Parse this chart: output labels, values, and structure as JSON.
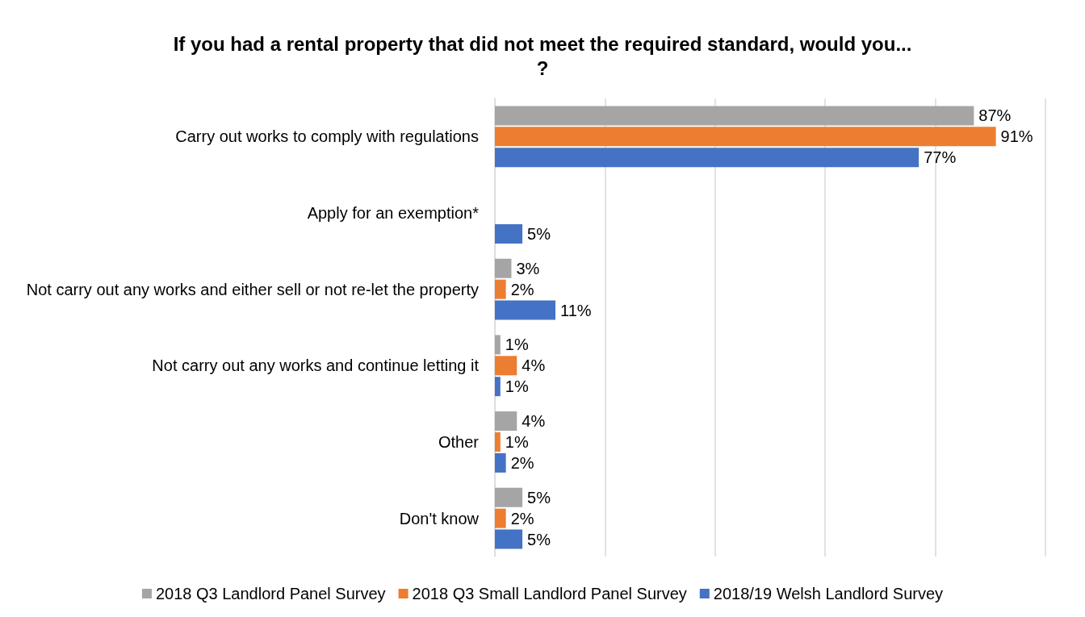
{
  "chart_data": {
    "type": "bar",
    "orientation": "horizontal",
    "title": "If you had a rental property that did not meet the required standard, would you...?",
    "categories": [
      "Carry out works to comply with regulations",
      "Apply for an exemption*",
      "Not carry out any works and either sell or not re-let the property",
      "Not carry out any works and continue letting it",
      "Other",
      "Don't know"
    ],
    "series": [
      {
        "name": "2018 Q3 Landlord Panel Survey",
        "color": "#a5a5a5",
        "values": [
          87,
          null,
          3,
          1,
          4,
          5
        ],
        "value_labels": [
          "87%",
          null,
          "3%",
          "1%",
          "4%",
          "5%"
        ]
      },
      {
        "name": "2018 Q3 Small Landlord Panel Survey",
        "color": "#ed7d31",
        "values": [
          91,
          null,
          2,
          4,
          1,
          2
        ],
        "value_labels": [
          "91%",
          null,
          "2%",
          "4%",
          "1%",
          "2%"
        ]
      },
      {
        "name": "2018/19 Welsh Landlord Survey",
        "color": "#4472c4",
        "values": [
          77,
          5,
          11,
          1,
          2,
          5
        ],
        "value_labels": [
          "77%",
          "5%",
          "11%",
          "1%",
          "2%",
          "5%"
        ]
      }
    ],
    "xlim": [
      0,
      100
    ],
    "xticks": [
      {
        "value": 0,
        "label": null
      },
      {
        "value": 20,
        "label": null
      },
      {
        "value": 40,
        "label": null
      },
      {
        "value": 60,
        "label": null
      },
      {
        "value": 80,
        "label": null
      },
      {
        "value": 100,
        "label": null
      }
    ],
    "tick_labels": "y",
    "grid": "x",
    "legend": "bottom"
  }
}
